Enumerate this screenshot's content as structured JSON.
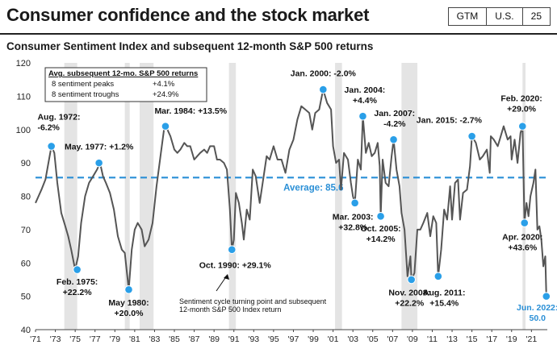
{
  "header": {
    "title": "Consumer confidence and the stock market",
    "badges": [
      "GTM",
      "U.S.",
      "25"
    ]
  },
  "chart_data": {
    "type": "line",
    "title": "Consumer Sentiment Index and subsequent 12-month S&P 500 returns",
    "ylim": [
      40,
      120
    ],
    "y_ticks": [
      40,
      50,
      60,
      70,
      80,
      90,
      100,
      110,
      120
    ],
    "xlim": [
      1971,
      2022.6
    ],
    "x_ticks": [
      {
        "year": 1971,
        "label": "'71"
      },
      {
        "year": 1973,
        "label": "'73"
      },
      {
        "year": 1975,
        "label": "'75"
      },
      {
        "year": 1977,
        "label": "'77"
      },
      {
        "year": 1979,
        "label": "'79"
      },
      {
        "year": 1981,
        "label": "'81"
      },
      {
        "year": 1983,
        "label": "'83"
      },
      {
        "year": 1985,
        "label": "'85"
      },
      {
        "year": 1987,
        "label": "'87"
      },
      {
        "year": 1989,
        "label": "'89"
      },
      {
        "year": 1991,
        "label": "'91"
      },
      {
        "year": 1993,
        "label": "'93"
      },
      {
        "year": 1995,
        "label": "'95"
      },
      {
        "year": 1997,
        "label": "'97"
      },
      {
        "year": 1999,
        "label": "'99"
      },
      {
        "year": 2001,
        "label": "'01"
      },
      {
        "year": 2003,
        "label": "'03"
      },
      {
        "year": 2005,
        "label": "'05"
      },
      {
        "year": 2007,
        "label": "'07"
      },
      {
        "year": 2009,
        "label": "'09"
      },
      {
        "year": 2011,
        "label": "'11"
      },
      {
        "year": 2013,
        "label": "'13"
      },
      {
        "year": 2015,
        "label": "'15"
      },
      {
        "year": 2017,
        "label": "'17"
      },
      {
        "year": 2019,
        "label": "'19"
      },
      {
        "year": 2021,
        "label": "'21"
      }
    ],
    "recessions": [
      [
        1973.9,
        1975.2
      ],
      [
        1980.0,
        1980.5
      ],
      [
        1981.5,
        1982.9
      ],
      [
        1990.5,
        1991.2
      ],
      [
        2001.2,
        2001.9
      ],
      [
        2007.9,
        2009.5
      ],
      [
        2020.1,
        2020.4
      ]
    ],
    "average": {
      "value": 85.6,
      "label": "Average: 85.6"
    },
    "series": [
      {
        "name": "Consumer Sentiment Index",
        "points": [
          [
            1971.0,
            78
          ],
          [
            1971.3,
            80
          ],
          [
            1971.6,
            82
          ],
          [
            1972.0,
            85
          ],
          [
            1972.3,
            90
          ],
          [
            1972.6,
            95
          ],
          [
            1972.9,
            93
          ],
          [
            1973.2,
            84
          ],
          [
            1973.6,
            75
          ],
          [
            1974.0,
            71
          ],
          [
            1974.3,
            68
          ],
          [
            1974.6,
            64
          ],
          [
            1975.0,
            58
          ],
          [
            1975.3,
            62
          ],
          [
            1975.6,
            72
          ],
          [
            1976.0,
            80
          ],
          [
            1976.4,
            84
          ],
          [
            1976.8,
            86
          ],
          [
            1977.2,
            88
          ],
          [
            1977.5,
            90
          ],
          [
            1977.8,
            86
          ],
          [
            1978.1,
            84
          ],
          [
            1978.5,
            81
          ],
          [
            1978.9,
            76
          ],
          [
            1979.3,
            68
          ],
          [
            1979.7,
            64
          ],
          [
            1980.0,
            63
          ],
          [
            1980.4,
            52
          ],
          [
            1980.7,
            64
          ],
          [
            1981.0,
            70
          ],
          [
            1981.3,
            72
          ],
          [
            1981.7,
            70
          ],
          [
            1982.0,
            65
          ],
          [
            1982.4,
            67
          ],
          [
            1982.8,
            72
          ],
          [
            1983.2,
            83
          ],
          [
            1983.6,
            92
          ],
          [
            1984.0,
            101
          ],
          [
            1984.3,
            100
          ],
          [
            1984.6,
            98
          ],
          [
            1985.0,
            94
          ],
          [
            1985.3,
            93
          ],
          [
            1985.6,
            94
          ],
          [
            1986.0,
            96
          ],
          [
            1986.3,
            95
          ],
          [
            1986.6,
            95
          ],
          [
            1987.0,
            91
          ],
          [
            1987.3,
            92
          ],
          [
            1987.6,
            93
          ],
          [
            1988.0,
            94
          ],
          [
            1988.3,
            93
          ],
          [
            1988.6,
            95
          ],
          [
            1989.0,
            95
          ],
          [
            1989.3,
            91
          ],
          [
            1989.6,
            91
          ],
          [
            1990.0,
            90
          ],
          [
            1990.3,
            88
          ],
          [
            1990.6,
            76
          ],
          [
            1990.8,
            64
          ],
          [
            1991.0,
            67
          ],
          [
            1991.2,
            81
          ],
          [
            1991.5,
            78
          ],
          [
            1991.8,
            72
          ],
          [
            1992.0,
            67
          ],
          [
            1992.3,
            76
          ],
          [
            1992.6,
            73
          ],
          [
            1992.9,
            88
          ],
          [
            1993.2,
            86
          ],
          [
            1993.6,
            78
          ],
          [
            1993.9,
            84
          ],
          [
            1994.3,
            92
          ],
          [
            1994.6,
            91
          ],
          [
            1995.0,
            95
          ],
          [
            1995.4,
            91
          ],
          [
            1995.8,
            91
          ],
          [
            1996.2,
            87
          ],
          [
            1996.6,
            94
          ],
          [
            1997.0,
            97
          ],
          [
            1997.4,
            103
          ],
          [
            1997.8,
            107
          ],
          [
            1998.2,
            106
          ],
          [
            1998.6,
            105
          ],
          [
            1998.9,
            100
          ],
          [
            1999.2,
            105
          ],
          [
            1999.6,
            106
          ],
          [
            2000.0,
            112
          ],
          [
            2000.4,
            108
          ],
          [
            2000.8,
            106
          ],
          [
            2001.0,
            95
          ],
          [
            2001.3,
            90
          ],
          [
            2001.6,
            91
          ],
          [
            2001.8,
            82
          ],
          [
            2002.1,
            93
          ],
          [
            2002.5,
            91
          ],
          [
            2002.8,
            84
          ],
          [
            2003.0,
            80
          ],
          [
            2003.2,
            78
          ],
          [
            2003.5,
            91
          ],
          [
            2003.8,
            88
          ],
          [
            2004.0,
            104
          ],
          [
            2004.3,
            93
          ],
          [
            2004.6,
            96
          ],
          [
            2004.9,
            92
          ],
          [
            2005.2,
            93
          ],
          [
            2005.5,
            96
          ],
          [
            2005.7,
            89
          ],
          [
            2005.8,
            74
          ],
          [
            2006.0,
            91
          ],
          [
            2006.3,
            84
          ],
          [
            2006.6,
            83
          ],
          [
            2006.9,
            92
          ],
          [
            2007.1,
            97
          ],
          [
            2007.4,
            88
          ],
          [
            2007.7,
            83
          ],
          [
            2007.9,
            75
          ],
          [
            2008.2,
            70
          ],
          [
            2008.5,
            56
          ],
          [
            2008.8,
            62
          ],
          [
            2008.9,
            55
          ],
          [
            2009.2,
            57
          ],
          [
            2009.5,
            70
          ],
          [
            2009.8,
            70
          ],
          [
            2010.1,
            72
          ],
          [
            2010.5,
            75
          ],
          [
            2010.8,
            68
          ],
          [
            2011.1,
            74
          ],
          [
            2011.4,
            72
          ],
          [
            2011.6,
            56
          ],
          [
            2011.9,
            64
          ],
          [
            2012.2,
            76
          ],
          [
            2012.5,
            73
          ],
          [
            2012.8,
            83
          ],
          [
            2013.0,
            73
          ],
          [
            2013.3,
            84
          ],
          [
            2013.6,
            85
          ],
          [
            2013.8,
            73
          ],
          [
            2014.1,
            81
          ],
          [
            2014.5,
            82
          ],
          [
            2014.8,
            89
          ],
          [
            2015.0,
            98
          ],
          [
            2015.4,
            96
          ],
          [
            2015.8,
            91
          ],
          [
            2016.1,
            92
          ],
          [
            2016.5,
            94
          ],
          [
            2016.8,
            87
          ],
          [
            2016.9,
            98
          ],
          [
            2017.2,
            97
          ],
          [
            2017.6,
            95
          ],
          [
            2017.9,
            98
          ],
          [
            2018.2,
            101
          ],
          [
            2018.6,
            97
          ],
          [
            2018.9,
            98
          ],
          [
            2019.0,
            91
          ],
          [
            2019.3,
            97
          ],
          [
            2019.6,
            90
          ],
          [
            2019.9,
            99
          ],
          [
            2020.1,
            101
          ],
          [
            2020.3,
            72
          ],
          [
            2020.5,
            78
          ],
          [
            2020.7,
            74
          ],
          [
            2020.9,
            80
          ],
          [
            2021.2,
            84
          ],
          [
            2021.4,
            88
          ],
          [
            2021.6,
            70
          ],
          [
            2021.8,
            71
          ],
          [
            2022.0,
            67
          ],
          [
            2022.2,
            59
          ],
          [
            2022.4,
            62
          ],
          [
            2022.5,
            50
          ]
        ]
      }
    ],
    "markers": [
      {
        "x": 1972.6,
        "y": 95,
        "label": [
          "Aug. 1972:",
          "-6.2%"
        ],
        "tx": 1971.2,
        "ty": 103,
        "anchor": "start",
        "type": "peak"
      },
      {
        "x": 1975.2,
        "y": 58,
        "label": [
          "Feb. 1975:",
          "+22.2%"
        ],
        "tx": 1975.2,
        "ty": 53.5,
        "anchor": "middle",
        "type": "trough"
      },
      {
        "x": 1977.4,
        "y": 90,
        "label": [
          "May. 1977: +1.2%"
        ],
        "tx": 1977.4,
        "ty": 94,
        "anchor": "middle",
        "type": "peak"
      },
      {
        "x": 1980.4,
        "y": 52,
        "label": [
          "May 1980:",
          "+20.0%"
        ],
        "tx": 1980.4,
        "ty": 47.3,
        "anchor": "middle",
        "type": "trough"
      },
      {
        "x": 1984.1,
        "y": 101,
        "label": [
          "Mar. 1984: +13.5%"
        ],
        "tx": 1983.0,
        "ty": 104.8,
        "anchor": "start",
        "type": "peak"
      },
      {
        "x": 1990.8,
        "y": 64,
        "label": [
          "Oct. 1990: +29.1%"
        ],
        "tx": 1987.5,
        "ty": 58.5,
        "anchor": "start",
        "type": "trough"
      },
      {
        "x": 2000.0,
        "y": 112,
        "label": [
          "Jan. 2000: -2.0%"
        ],
        "tx": 2000.0,
        "ty": 116,
        "anchor": "middle",
        "type": "peak"
      },
      {
        "x": 2003.2,
        "y": 78,
        "label": [
          "Mar. 2003:",
          "+32.8%"
        ],
        "tx": 2003.0,
        "ty": 73,
        "anchor": "middle",
        "type": "trough"
      },
      {
        "x": 2004.0,
        "y": 104,
        "label": [
          "Jan. 2004:",
          "+4.4%"
        ],
        "tx": 2004.2,
        "ty": 111,
        "anchor": "middle",
        "type": "peak"
      },
      {
        "x": 2005.8,
        "y": 74,
        "label": [
          "Oct. 2005:",
          "+14.2%"
        ],
        "tx": 2005.8,
        "ty": 69.5,
        "anchor": "middle",
        "type": "trough"
      },
      {
        "x": 2007.1,
        "y": 97,
        "label": [
          "Jan. 2007:",
          "-4.2%"
        ],
        "tx": 2007.2,
        "ty": 104,
        "anchor": "middle",
        "type": "peak"
      },
      {
        "x": 2008.9,
        "y": 55,
        "label": [
          "Nov. 2008:",
          "+22.2%"
        ],
        "tx": 2008.7,
        "ty": 50.3,
        "anchor": "middle",
        "type": "trough"
      },
      {
        "x": 2011.6,
        "y": 56,
        "label": [
          "Aug. 2011:",
          "+15.4%"
        ],
        "tx": 2012.2,
        "ty": 50.3,
        "anchor": "middle",
        "type": "trough"
      },
      {
        "x": 2015.0,
        "y": 98,
        "label": [
          "Jan. 2015: -2.7%"
        ],
        "tx": 2012.7,
        "ty": 102,
        "anchor": "middle",
        "type": "peak"
      },
      {
        "x": 2020.1,
        "y": 101,
        "label": [
          "Feb. 2020:",
          "+29.0%"
        ],
        "tx": 2020.0,
        "ty": 108.5,
        "anchor": "middle",
        "type": "peak"
      },
      {
        "x": 2020.3,
        "y": 72,
        "label": [
          "Apr. 2020:",
          "+43.6%"
        ],
        "tx": 2020.1,
        "ty": 67,
        "anchor": "middle",
        "type": "trough"
      },
      {
        "x": 2022.5,
        "y": 50,
        "label": [
          "Jun. 2022:",
          "50.0"
        ],
        "tx": 2021.6,
        "ty": 45.8,
        "anchor": "middle",
        "type": "latest"
      }
    ],
    "annotation": {
      "lines": [
        "Sentiment cycle turning point and subsequent",
        "12-month S&P 500 Index return"
      ]
    },
    "inset_table": {
      "header": "Avg. subsequent 12-mo. S&P 500 returns",
      "rows": [
        {
          "label": "8 sentiment peaks",
          "value": "+4.1%"
        },
        {
          "label": "8 sentiment troughs",
          "value": "+24.9%"
        }
      ]
    },
    "colors": {
      "line": "#555555",
      "marker": "#2a9fe8",
      "average": "#2a8fd6",
      "recession": "#e4e4e4",
      "latest_text": "#2a8fd6"
    }
  }
}
